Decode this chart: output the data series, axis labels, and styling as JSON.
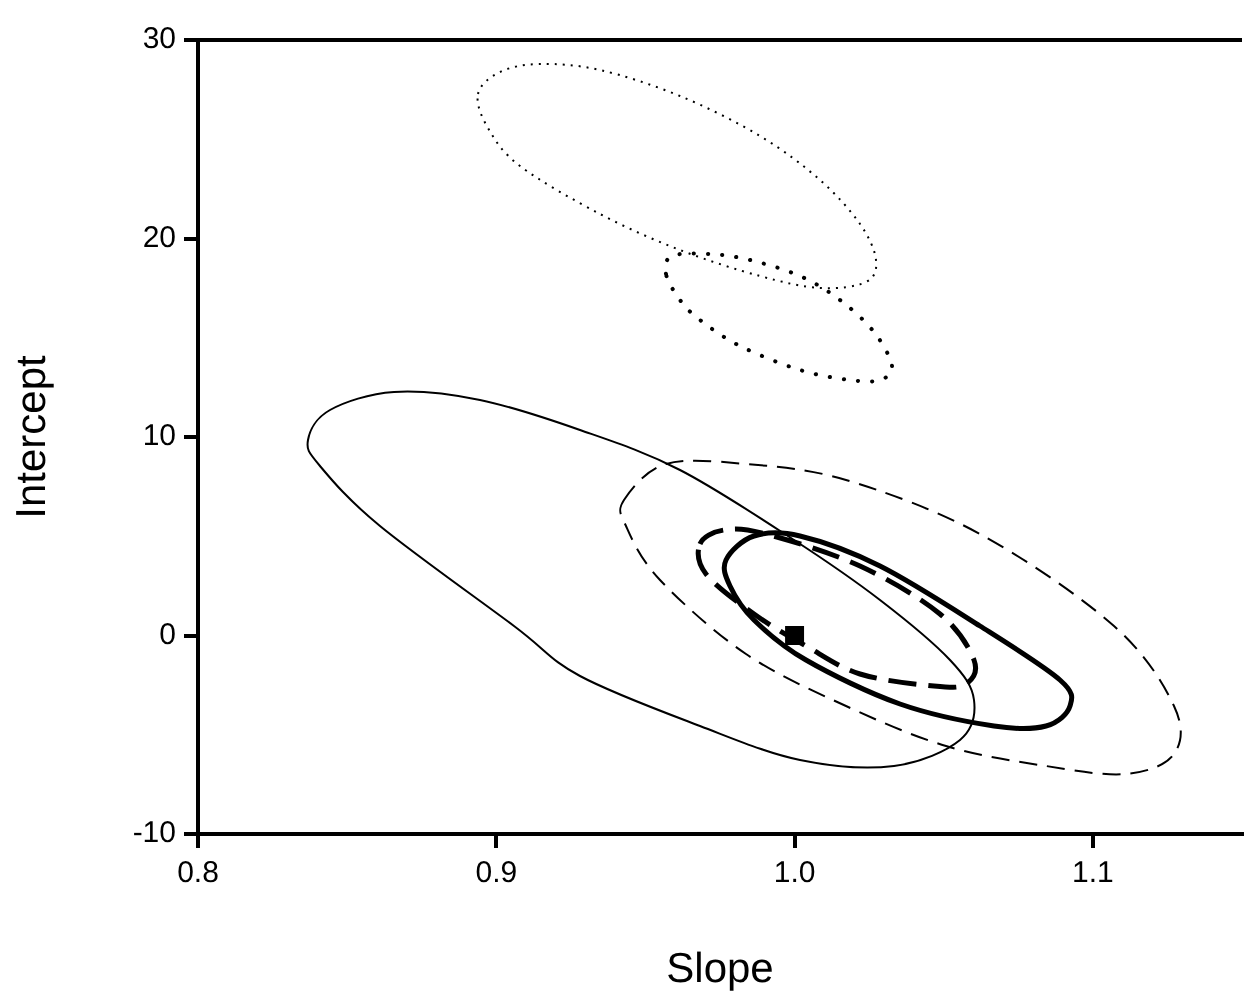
{
  "chart_data": {
    "type": "scatter",
    "xlabel": "Slope",
    "ylabel": "Intercept",
    "xlim": [
      0.8,
      1.15
    ],
    "ylim": [
      -10,
      30
    ],
    "xticks": [
      0.8,
      0.9,
      {
        "value": 1.0,
        "label": "1.0"
      },
      1.1
    ],
    "yticks": [
      -10,
      0,
      10,
      20,
      30
    ],
    "grid": false,
    "legend": false,
    "series": [
      {
        "color": "#000000",
        "marker": "square",
        "x": [
          1.0
        ],
        "values": [
          0
        ]
      }
    ]
  }
}
